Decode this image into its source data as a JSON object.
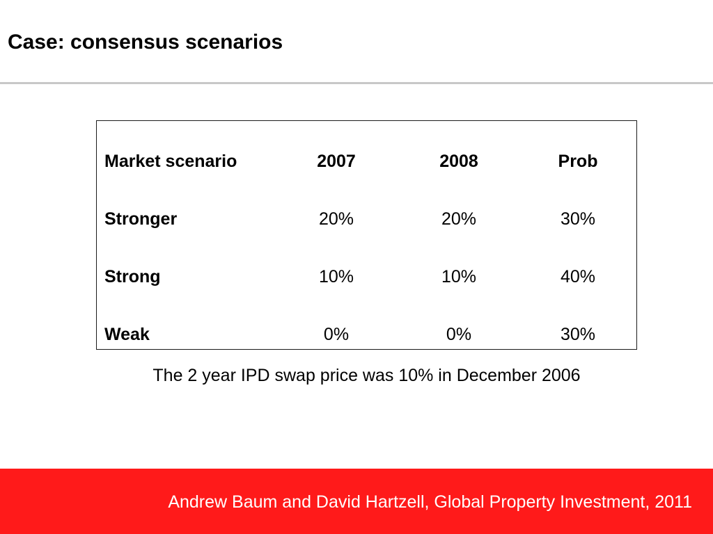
{
  "slide": {
    "title": "Case: consensus scenarios"
  },
  "table": {
    "headers": [
      "Market scenario",
      "2007",
      "2008",
      "Prob"
    ],
    "rows": [
      [
        "Stronger",
        "20%",
        "20%",
        "30%"
      ],
      [
        "Strong",
        "10%",
        "10%",
        "40%"
      ],
      [
        "Weak",
        "0%",
        "0%",
        "30%"
      ]
    ]
  },
  "note": "The 2 year IPD swap price was 10% in December 2006",
  "footer": {
    "text": "Andrew Baum and David Hartzell, Global Property Investment, 2011"
  },
  "colors": {
    "footer_bar": "#ff1a1a",
    "title_rule": "#c8c8c8"
  }
}
